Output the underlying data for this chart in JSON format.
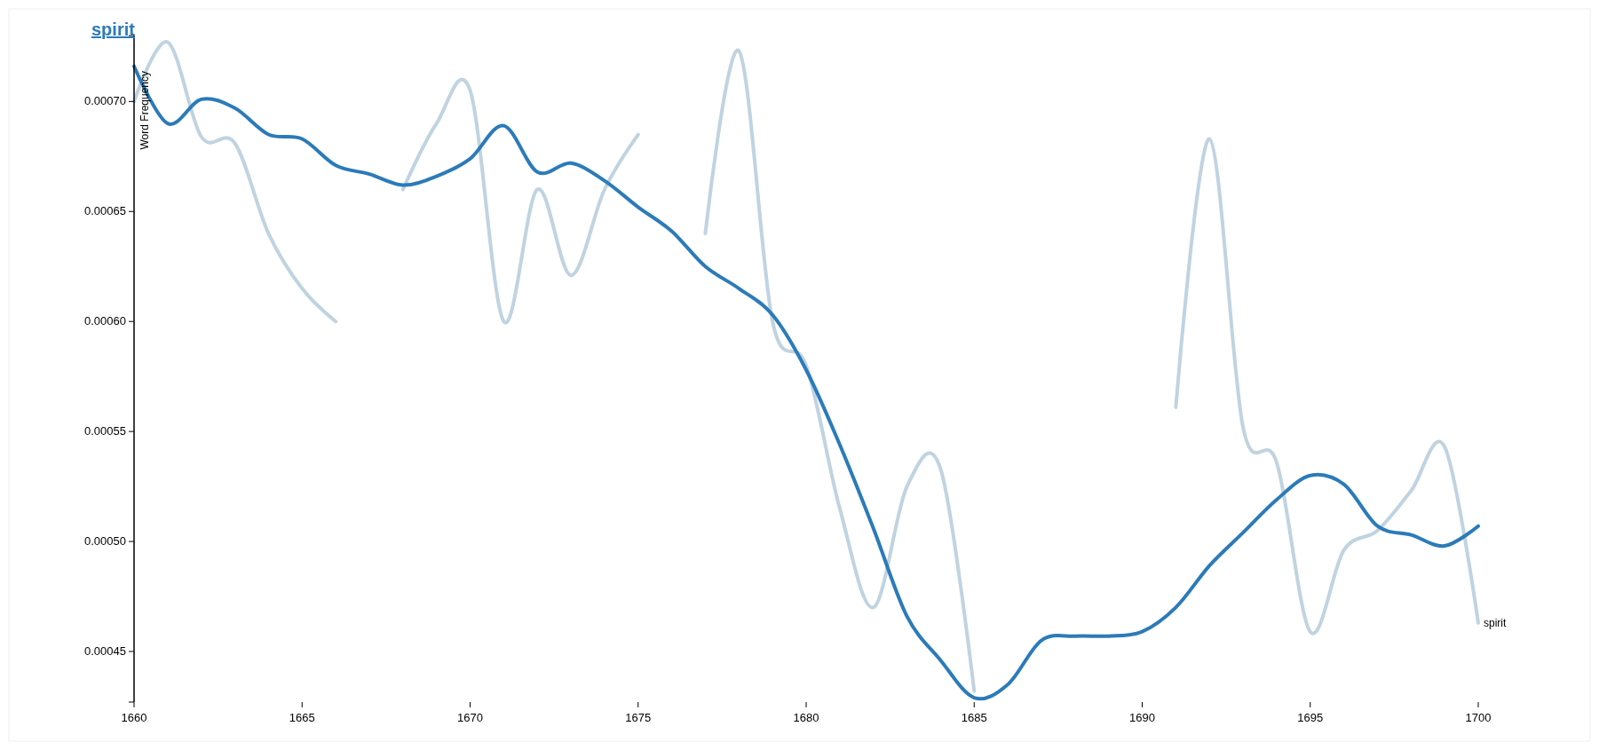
{
  "chart_data": {
    "type": "line",
    "title": "spirit",
    "ylabel": "Word Frequency",
    "x": [
      1660,
      1661,
      1662,
      1663,
      1664,
      1665,
      1666,
      1667,
      1668,
      1669,
      1670,
      1671,
      1672,
      1673,
      1674,
      1675,
      1676,
      1677,
      1678,
      1679,
      1680,
      1681,
      1682,
      1683,
      1684,
      1685,
      1686,
      1687,
      1688,
      1689,
      1690,
      1691,
      1692,
      1693,
      1694,
      1695,
      1696,
      1697,
      1698,
      1699,
      1700
    ],
    "series": [
      {
        "name": "spirit",
        "color": "#c0d3e0",
        "values": [
          0.0007,
          0.000727,
          0.000684,
          0.000681,
          0.00064,
          0.000615,
          0.0006,
          null,
          0.00066,
          0.00069,
          0.000705,
          0.0006,
          0.00066,
          0.000621,
          0.00066,
          0.000685,
          null,
          0.00064,
          0.000723,
          0.0006,
          0.00058,
          0.000515,
          0.00047,
          0.000525,
          0.000533,
          0.000432,
          null,
          null,
          null,
          null,
          null,
          0.000561,
          0.000683,
          0.000552,
          0.000536,
          0.000459,
          0.000496,
          0.000505,
          0.000523,
          0.000543,
          0.000463
        ]
      },
      {
        "color": "#2b7bb9",
        "values": [
          0.000716,
          0.00069,
          0.000701,
          0.000697,
          0.000685,
          0.000683,
          0.000671,
          0.000667,
          0.000662,
          0.000666,
          0.000674,
          0.000689,
          0.000668,
          0.000672,
          0.000664,
          0.000652,
          0.000641,
          0.000625,
          0.000615,
          0.000603,
          0.000578,
          0.000544,
          0.000506,
          0.000466,
          0.000446,
          0.000429,
          0.000435,
          0.000455,
          0.000457,
          0.000457,
          0.000459,
          0.00047,
          0.000489,
          0.000504,
          0.000519,
          0.00053,
          0.000526,
          0.000507,
          0.000503,
          0.000498,
          0.000507
        ]
      }
    ],
    "xlim": [
      1660,
      1700
    ],
    "xticks": [
      1660,
      1665,
      1670,
      1675,
      1680,
      1685,
      1690,
      1695,
      1700
    ],
    "ylim": [
      0.000427,
      0.00073
    ],
    "yticks": [
      {
        "value": 0.00045,
        "label": "0.00045"
      },
      {
        "value": 0.0005,
        "label": "0.00050"
      },
      {
        "value": 0.00055,
        "label": "0.00055"
      },
      {
        "value": 0.0006,
        "label": "0.00060"
      },
      {
        "value": 0.00065,
        "label": "0.00065"
      },
      {
        "value": 0.0007,
        "label": "0.00070"
      }
    ]
  }
}
